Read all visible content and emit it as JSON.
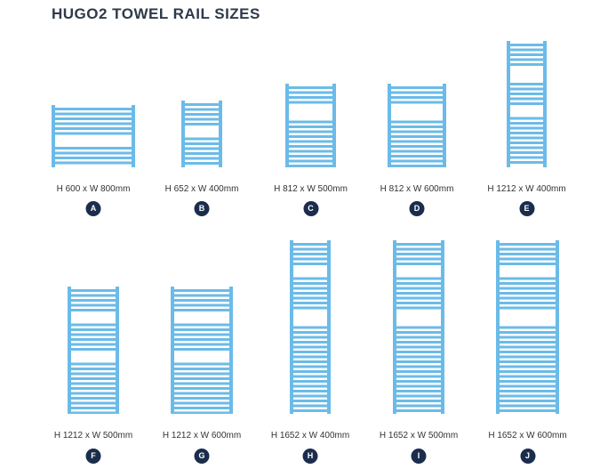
{
  "title": "HUGO2 TOWEL RAIL SIZES",
  "rail_color": "#6bbbe8",
  "badge_color": "#1b2d4d",
  "items": [
    {
      "letter": "A",
      "size": "H 600 x W 800mm"
    },
    {
      "letter": "B",
      "size": "H 652 x W 400mm"
    },
    {
      "letter": "C",
      "size": "H 812 x W 500mm"
    },
    {
      "letter": "D",
      "size": "H 812 x W 600mm"
    },
    {
      "letter": "E",
      "size": "H 1212 x W 400mm"
    },
    {
      "letter": "F",
      "size": "H 1212 x W 500mm"
    },
    {
      "letter": "G",
      "size": "H 1212 x W 600mm"
    },
    {
      "letter": "H",
      "size": "H 1652 x W 400mm"
    },
    {
      "letter": "I",
      "size": "H 1652 x W 500mm"
    },
    {
      "letter": "J",
      "size": "H 1652 x W 600mm"
    }
  ]
}
